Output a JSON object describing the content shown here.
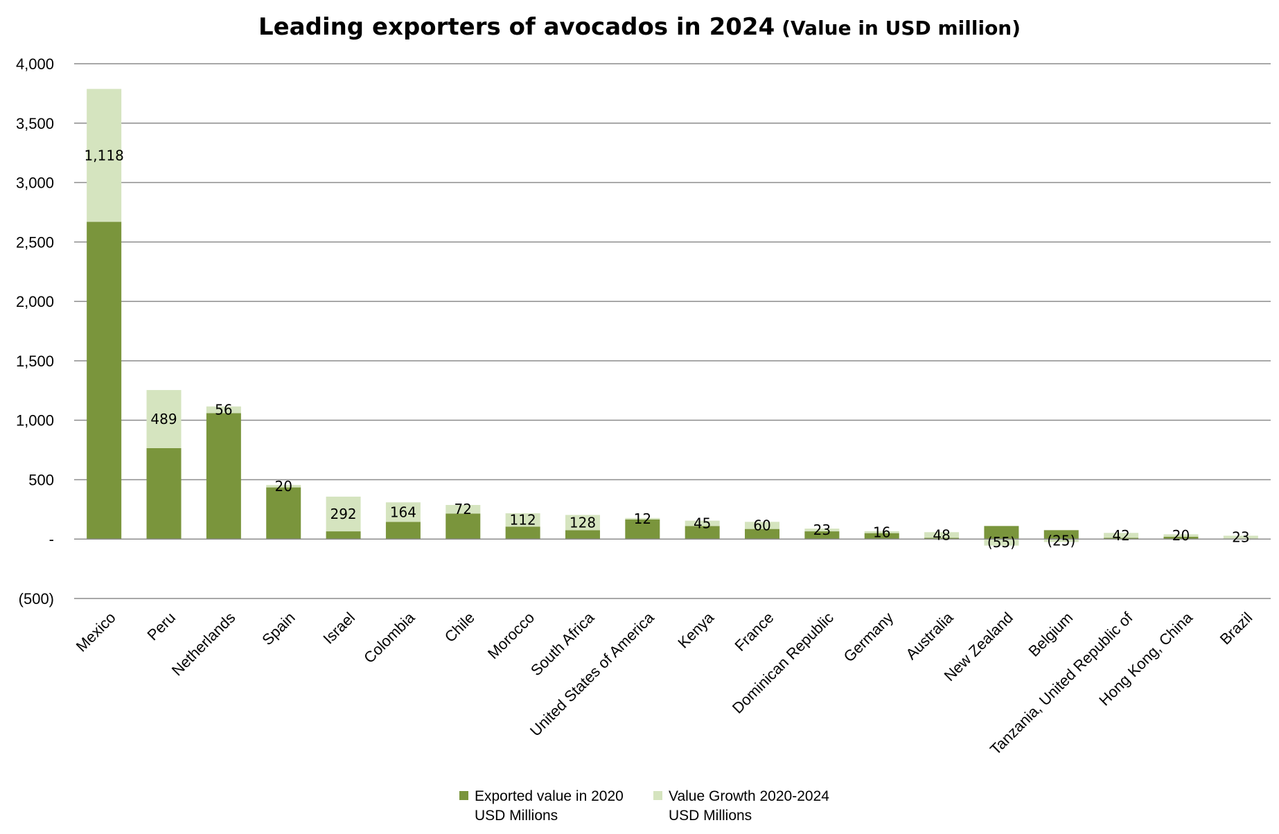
{
  "chart_data": {
    "type": "bar",
    "stacked": true,
    "title": "Leading exporters of avocados in 2024",
    "subtitle": "(Value in USD million)",
    "xlabel": "",
    "ylabel": "",
    "ylim": [
      -500,
      4000
    ],
    "yticks": [
      -500,
      0,
      500,
      1000,
      1500,
      2000,
      2500,
      3000,
      3500,
      4000
    ],
    "ytick_labels": [
      "(500)",
      "-",
      "500",
      "1,000",
      "1,500",
      "2,000",
      "2,500",
      "3,000",
      "3,500",
      "4,000"
    ],
    "grid": true,
    "legend_position": "bottom",
    "categories": [
      "Mexico",
      "Peru",
      "Netherlands",
      "Spain",
      "Israel",
      "Colombia",
      "Chile",
      "Morocco",
      "South Africa",
      "United States of America",
      "Kenya",
      "France",
      "Dominican Republic",
      "Germany",
      "Australia",
      "New Zealand",
      "Belgium",
      "Tanzania, United Republic of",
      "Hong Kong, China",
      "Brazil"
    ],
    "series": [
      {
        "name": "Exported value in 2020 USD Millions",
        "name_lines": [
          "Exported value in 2020",
          "USD Millions"
        ],
        "color": "#7a953c",
        "values": [
          2670,
          765,
          1060,
          435,
          65,
          145,
          215,
          105,
          75,
          165,
          110,
          85,
          65,
          50,
          10,
          110,
          75,
          10,
          20,
          5
        ]
      },
      {
        "name": "Value Growth 2020-2024 USD Millions",
        "name_lines": [
          "Value Growth 2020-2024",
          "USD Millions"
        ],
        "color": "#d5e4bf",
        "values": [
          1118,
          489,
          56,
          20,
          292,
          164,
          72,
          112,
          128,
          12,
          45,
          60,
          23,
          16,
          48,
          -55,
          -25,
          42,
          20,
          23
        ],
        "data_labels": [
          "1,118",
          "489",
          "56",
          "20",
          "292",
          "164",
          "72",
          "112",
          "128",
          "12",
          "45",
          "60",
          "23",
          "16",
          "48",
          "(55)",
          "(25)",
          "42",
          "20",
          "23"
        ]
      }
    ]
  }
}
